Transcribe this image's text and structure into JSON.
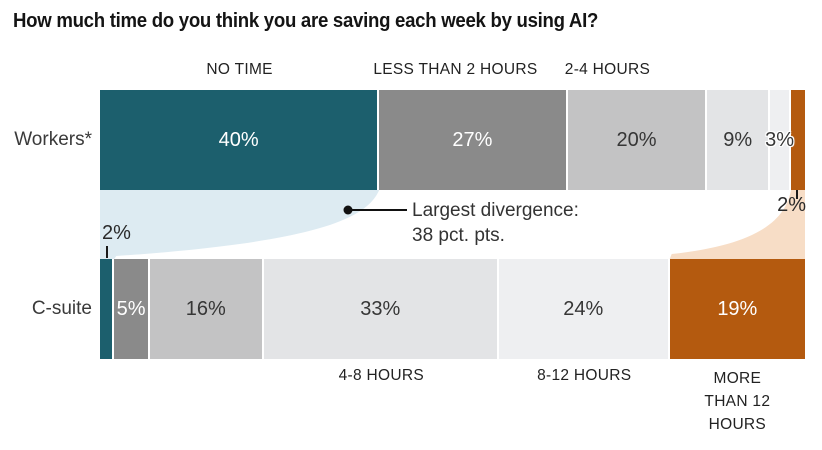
{
  "title": "How much time do you think you are saving each week by using AI?",
  "chart_data": {
    "type": "bar",
    "subtype": "horizontal-stacked-100pct-comparison",
    "title": "How much time do you think you are saving each week by using AI?",
    "unit": "%",
    "categories": [
      "NO TIME",
      "LESS THAN 2 HOURS",
      "2-4 HOURS",
      "4-8 HOURS",
      "8-12 HOURS",
      "MORE THAN 12 HOURS"
    ],
    "series": [
      {
        "name": "Workers*",
        "values": [
          40,
          27,
          20,
          9,
          3,
          2
        ]
      },
      {
        "name": "C-suite",
        "values": [
          2,
          5,
          16,
          33,
          24,
          19
        ]
      }
    ],
    "annotation": {
      "line1": "Largest divergence:",
      "line2": "38 pct. pts."
    },
    "outside_labels": {
      "workers_more_than_12": "2%",
      "csuite_no_time": "2%"
    },
    "legend_position": "category labels above top bar (first three) and below bottom bar (last three)",
    "colors": {
      "segments": [
        "#1c5f6d",
        "#8a8a8a",
        "#c3c3c4",
        "#e3e4e6",
        "#eeeff1",
        "#b45a0f"
      ],
      "flow_left": "#ddebf2",
      "flow_right": "#f7ddc6",
      "text_dark": "#363636",
      "text_white": "#ffffff",
      "annotation_ink": "#111111"
    }
  }
}
